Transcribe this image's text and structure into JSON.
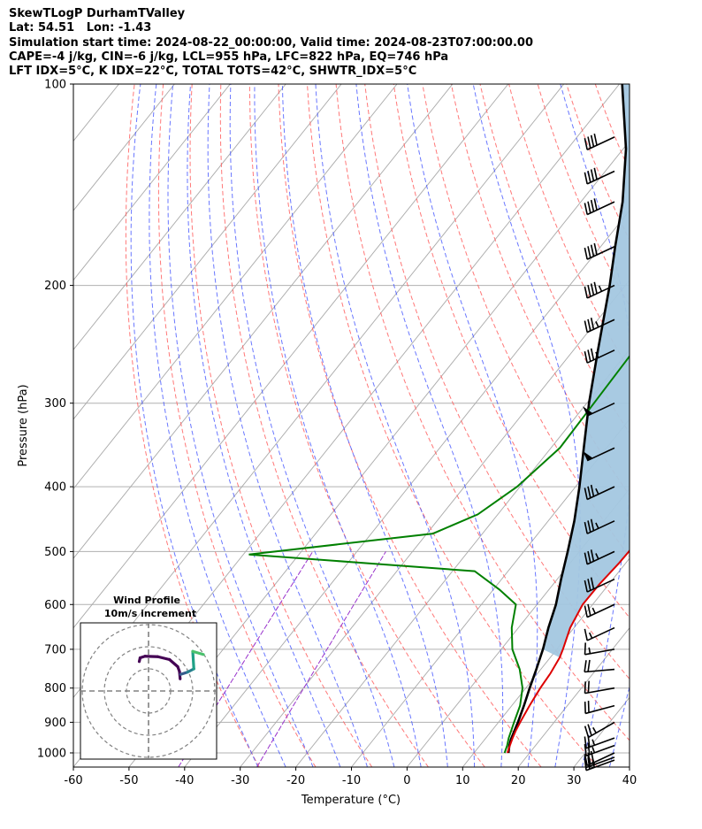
{
  "header": {
    "lines": [
      "SkewTLogP DurhamTValley",
      "Lat: 54.51   Lon: -1.43",
      "Simulation start time: 2024-08-22_00:00:00, Valid time: 2024-08-23T07:00:00.00",
      "CAPE=-4 j/kg, CIN=-6 j/kg, LCL=955 hPa, LFC=822 hPa, EQ=746 hPa",
      "LFT IDX=5°C, K IDX=22°C, TOTAL TOTS=42°C, SHWTR_IDX=5°C"
    ]
  },
  "chart_data": {
    "type": "skew-t log-p",
    "xlabel": "Temperature (°C)",
    "ylabel": "Pressure (hPa)",
    "xlim": [
      -60,
      40
    ],
    "ylim": [
      1050,
      100
    ],
    "x_ticks": [
      -60,
      -50,
      -40,
      -30,
      -20,
      -10,
      0,
      10,
      20,
      30,
      40
    ],
    "y_ticks": [
      1000,
      900,
      800,
      700,
      600,
      500,
      400,
      300,
      200,
      100
    ],
    "grid": true,
    "colors": {
      "temperature": "#dd0000",
      "dewpoint": "#008000",
      "parcel": "#000000",
      "cape_shading": "#a3c7e0",
      "dry_adiabats": "#ff6060",
      "moist_adiabats": "#4455ff",
      "mixing_ratio": "#9933cc",
      "isotherms": "#aaaaaa"
    },
    "temperature": [
      {
        "p": 1000,
        "t": 16.0
      },
      {
        "p": 975,
        "t": 15.4
      },
      {
        "p": 950,
        "t": 14.8
      },
      {
        "p": 925,
        "t": 14.3
      },
      {
        "p": 900,
        "t": 13.9
      },
      {
        "p": 850,
        "t": 13.2
      },
      {
        "p": 800,
        "t": 12.6
      },
      {
        "p": 760,
        "t": 12.3
      },
      {
        "p": 720,
        "t": 11.7
      },
      {
        "p": 700,
        "t": 11.1
      },
      {
        "p": 650,
        "t": 9.3
      },
      {
        "p": 600,
        "t": 8.2
      },
      {
        "p": 560,
        "t": 8.3
      },
      {
        "p": 520,
        "t": 8.8
      },
      {
        "p": 500,
        "t": 8.9
      },
      {
        "p": 450,
        "t": 8.3
      },
      {
        "p": 400,
        "t": 6.8
      },
      {
        "p": 350,
        "t": 4.5
      },
      {
        "p": 300,
        "t": 1.2
      },
      {
        "p": 250,
        "t": -1.7
      },
      {
        "p": 225,
        "t": -1.0
      },
      {
        "p": 200,
        "t": 0.8
      },
      {
        "p": 175,
        "t": 3.8
      },
      {
        "p": 150,
        "t": 5.8
      },
      {
        "p": 125,
        "t": 7.2
      },
      {
        "p": 113,
        "t": 10.2
      },
      {
        "p": 105,
        "t": 12.2
      },
      {
        "p": 100,
        "t": 13.2
      }
    ],
    "dewpoint": [
      {
        "p": 1000,
        "t": 15.5
      },
      {
        "p": 975,
        "t": 14.9
      },
      {
        "p": 950,
        "t": 14.1
      },
      {
        "p": 900,
        "t": 12.8
      },
      {
        "p": 850,
        "t": 11.5
      },
      {
        "p": 800,
        "t": 9.4
      },
      {
        "p": 750,
        "t": 6.2
      },
      {
        "p": 700,
        "t": 2.0
      },
      {
        "p": 650,
        "t": -1.2
      },
      {
        "p": 600,
        "t": -3.8
      },
      {
        "p": 570,
        "t": -8.9
      },
      {
        "p": 535,
        "t": -16.0
      },
      {
        "p": 505,
        "t": -59.0
      },
      {
        "p": 470,
        "t": -28.9
      },
      {
        "p": 440,
        "t": -23.6
      },
      {
        "p": 400,
        "t": -20.5
      },
      {
        "p": 350,
        "t": -18.4
      },
      {
        "p": 300,
        "t": -18.7
      },
      {
        "p": 260,
        "t": -19.0
      },
      {
        "p": 230,
        "t": -19.3
      },
      {
        "p": 210,
        "t": -20.4
      },
      {
        "p": 190,
        "t": -21.8
      },
      {
        "p": 178,
        "t": -22.4
      },
      {
        "p": 165,
        "t": -21.1
      },
      {
        "p": 150,
        "t": -18.3
      },
      {
        "p": 125,
        "t": -13.0
      },
      {
        "p": 100,
        "t": -5.0
      }
    ],
    "parcel": [
      {
        "p": 1000,
        "t": 16.2
      },
      {
        "p": 975,
        "t": 15.3
      },
      {
        "p": 955,
        "t": 14.7
      },
      {
        "p": 900,
        "t": 13.5
      },
      {
        "p": 850,
        "t": 12.2
      },
      {
        "p": 800,
        "t": 10.7
      },
      {
        "p": 750,
        "t": 9.2
      },
      {
        "p": 700,
        "t": 7.5
      },
      {
        "p": 650,
        "t": 5.4
      },
      {
        "p": 600,
        "t": 3.4
      },
      {
        "p": 550,
        "t": 0.7
      },
      {
        "p": 500,
        "t": -2.1
      },
      {
        "p": 450,
        "t": -5.3
      },
      {
        "p": 400,
        "t": -9.3
      },
      {
        "p": 350,
        "t": -14.1
      },
      {
        "p": 300,
        "t": -19.6
      },
      {
        "p": 250,
        "t": -25.6
      },
      {
        "p": 200,
        "t": -32.8
      },
      {
        "p": 175,
        "t": -37.4
      },
      {
        "p": 150,
        "t": -42.5
      },
      {
        "p": 125,
        "t": -49.5
      },
      {
        "p": 100,
        "t": -59.5
      }
    ],
    "wind_barbs": [
      {
        "p": 1025,
        "speed": 25,
        "dir": 250
      },
      {
        "p": 1015,
        "speed": 25,
        "dir": 250
      },
      {
        "p": 1000,
        "speed": 30,
        "dir": 245
      },
      {
        "p": 975,
        "speed": 25,
        "dir": 250
      },
      {
        "p": 950,
        "speed": 25,
        "dir": 250
      },
      {
        "p": 900,
        "speed": 25,
        "dir": 240
      },
      {
        "p": 850,
        "speed": 20,
        "dir": 255
      },
      {
        "p": 800,
        "speed": 20,
        "dir": 260
      },
      {
        "p": 750,
        "speed": 20,
        "dir": 265
      },
      {
        "p": 700,
        "speed": 15,
        "dir": 260
      },
      {
        "p": 650,
        "speed": 15,
        "dir": 245
      },
      {
        "p": 600,
        "speed": 25,
        "dir": 245
      },
      {
        "p": 550,
        "speed": 30,
        "dir": 245
      },
      {
        "p": 500,
        "speed": 35,
        "dir": 245
      },
      {
        "p": 450,
        "speed": 35,
        "dir": 245
      },
      {
        "p": 400,
        "speed": 35,
        "dir": 245
      },
      {
        "p": 350,
        "speed": 50,
        "dir": 245
      },
      {
        "p": 300,
        "speed": 50,
        "dir": 245
      },
      {
        "p": 250,
        "speed": 35,
        "dir": 245
      },
      {
        "p": 225,
        "speed": 35,
        "dir": 245
      },
      {
        "p": 200,
        "speed": 45,
        "dir": 245
      },
      {
        "p": 175,
        "speed": 40,
        "dir": 245
      },
      {
        "p": 150,
        "speed": 40,
        "dir": 245
      },
      {
        "p": 135,
        "speed": 40,
        "dir": 245
      },
      {
        "p": 120,
        "speed": 40,
        "dir": 245
      }
    ],
    "hodograph": {
      "title": "Wind Profile",
      "subtitle": "10m/s increment",
      "rings_ms": [
        10,
        20,
        30
      ],
      "trace": [
        {
          "u": 14.3,
          "v": 5.5
        },
        {
          "u": 14.0,
          "v": 8.8
        },
        {
          "u": 13.2,
          "v": 11.0
        },
        {
          "u": 9.5,
          "v": 14.2
        },
        {
          "u": 4.2,
          "v": 15.5
        },
        {
          "u": -1.6,
          "v": 15.7
        },
        {
          "u": -3.8,
          "v": 15.0
        },
        {
          "u": -4.2,
          "v": 13.3
        },
        {
          "u": 14.5,
          "v": 7.5
        },
        {
          "u": 17.6,
          "v": 8.5
        },
        {
          "u": 20.5,
          "v": 10.0
        },
        {
          "u": 20.0,
          "v": 17.9
        },
        {
          "u": 24.8,
          "v": 16.5
        }
      ]
    }
  }
}
